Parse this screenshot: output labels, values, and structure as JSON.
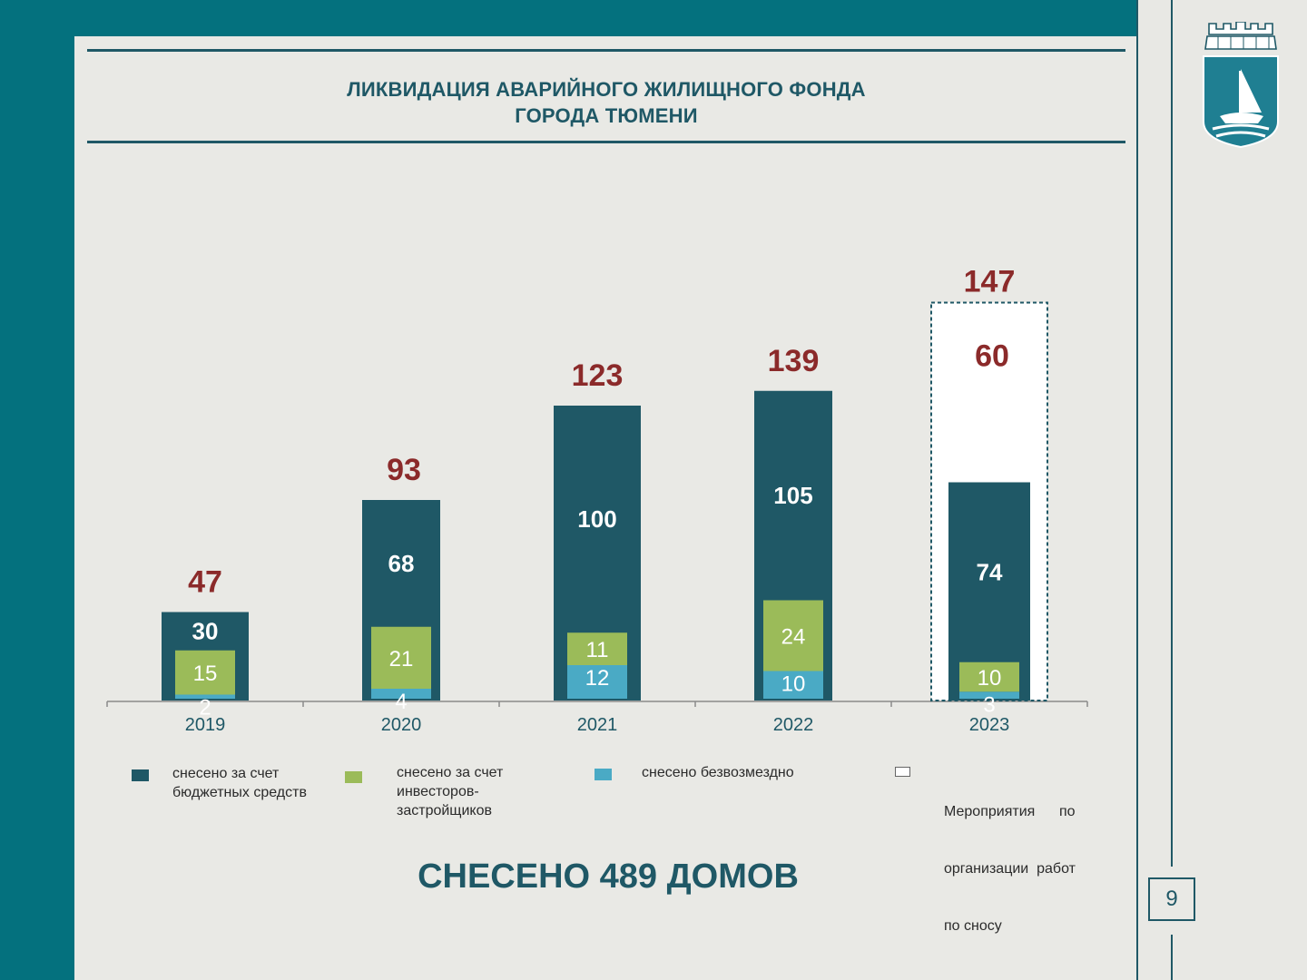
{
  "title": {
    "line1": "ЛИКВИДАЦИЯ АВАРИЙНОГО ЖИЛИЩНОГО ФОНДА",
    "line2": "ГОРОДА ТЮМЕНИ"
  },
  "colors": {
    "budget": "#1f5866",
    "investors": "#9bbb59",
    "free": "#4aaac5",
    "planned": "#ffffff",
    "total": "#8b2a2a",
    "accent": "#04717e"
  },
  "chart_data": {
    "type": "bar",
    "stacked": true,
    "categories": [
      "2019",
      "2020",
      "2021",
      "2022",
      "2023"
    ],
    "series": [
      {
        "name": "снесено безвозмездно",
        "values": [
          2,
          4,
          12,
          10,
          3
        ]
      },
      {
        "name": "снесено за счет инвесторов-застройщиков",
        "values": [
          15,
          21,
          11,
          24,
          10
        ]
      },
      {
        "name": "снесено за счет бюджетных средств",
        "values": [
          30,
          68,
          100,
          105,
          74
        ]
      },
      {
        "name": "Мероприятия по организации работ по сносу",
        "values": [
          0,
          0,
          0,
          0,
          60
        ]
      }
    ],
    "labels": {
      "budget": [
        "30",
        "68",
        "100",
        "105",
        "74"
      ],
      "investors": [
        "15",
        "21",
        "11",
        "24",
        "10"
      ],
      "free": [
        "2",
        "4",
        "12",
        "10",
        "3"
      ],
      "planned": [
        "",
        "",
        "",
        "",
        "60"
      ]
    },
    "totals": [
      "47",
      "93",
      "123",
      "139",
      "147"
    ],
    "legend_position": "bottom",
    "grid": false
  },
  "legend": [
    {
      "key": "budget",
      "lines": [
        "снесено за счет",
        "бюджетных средств"
      ]
    },
    {
      "key": "investors",
      "lines": [
        "снесено за счет",
        "инвесторов-",
        "застройщиков"
      ]
    },
    {
      "key": "free",
      "lines": [
        "снесено безвозмездно"
      ]
    },
    {
      "key": "planned",
      "lines": [
        "Мероприятия      по",
        "организации  работ",
        "по сносу"
      ]
    }
  ],
  "summary": "СНЕСЕНО 489 ДОМОВ",
  "page_number": "9",
  "emblem": "tyumen-coat-of-arms"
}
